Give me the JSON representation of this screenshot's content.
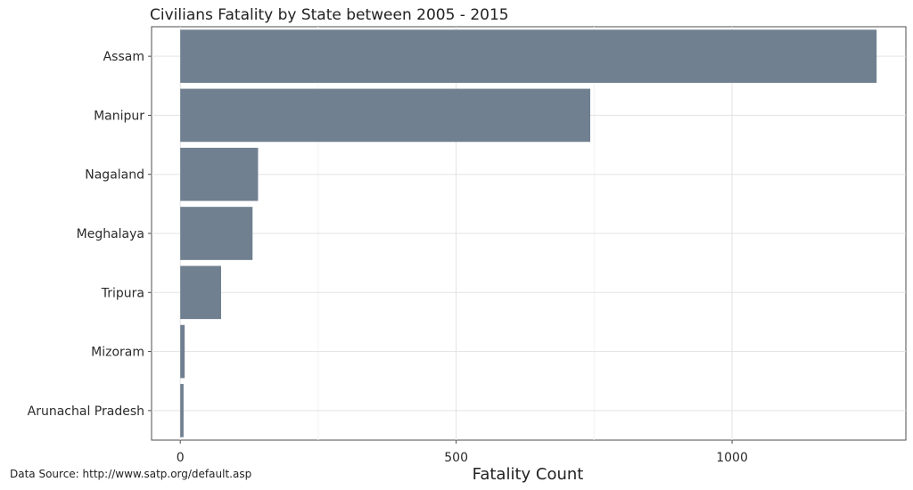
{
  "chart_data": {
    "type": "bar",
    "orientation": "horizontal",
    "title": "Civilians Fatality by State between 2005 - 2015",
    "xlabel": "Fatality Count",
    "ylabel": "",
    "categories": [
      "Assam",
      "Manipur",
      "Nagaland",
      "Meghalaya",
      "Tripura",
      "Mizoram",
      "Arunachal Pradesh"
    ],
    "values": [
      1262,
      743,
      141,
      131,
      74,
      8,
      6
    ],
    "xlim": [
      -52,
      1315
    ],
    "xticks": [
      0,
      500,
      1000
    ],
    "grid": true,
    "bar_color": "#708090",
    "caption": "Data Source: http://www.satp.org/default.asp"
  }
}
